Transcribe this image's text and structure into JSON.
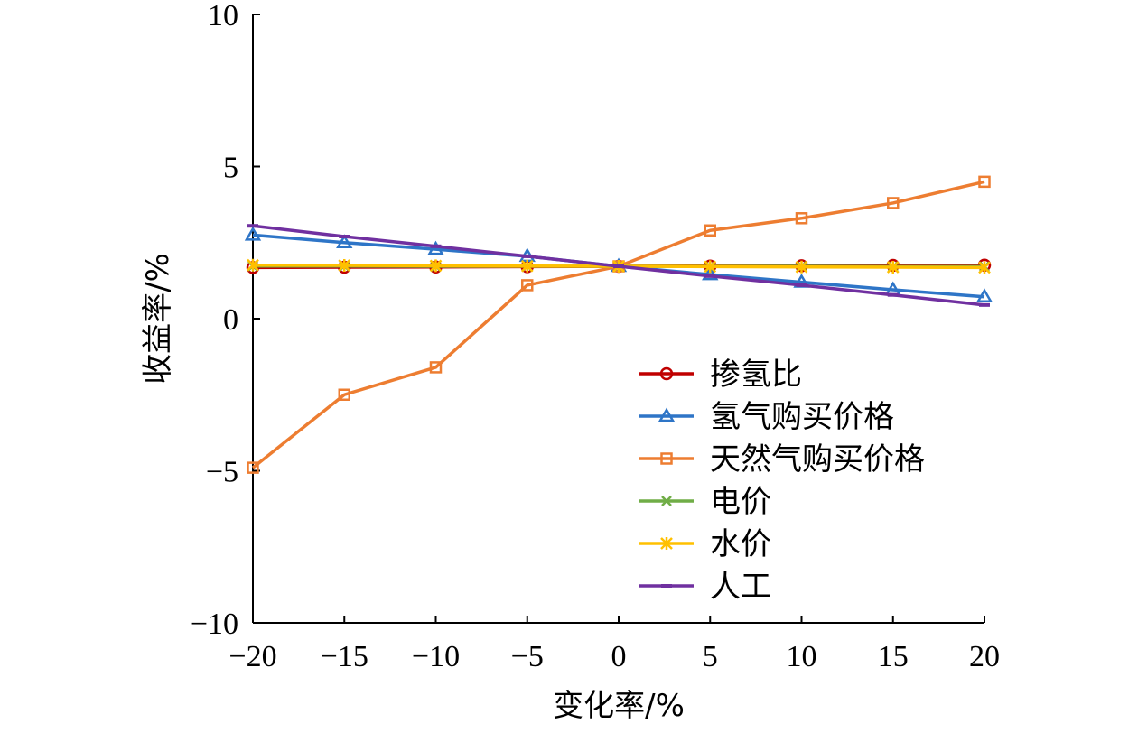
{
  "chart_data": {
    "type": "line",
    "xlabel": "变化率/%",
    "ylabel": "收益率/%",
    "xlim": [
      -20,
      20
    ],
    "ylim": [
      -10,
      10
    ],
    "xticks": [
      -20,
      -15,
      -10,
      -5,
      0,
      5,
      10,
      15,
      20
    ],
    "yticks": [
      -10,
      -5,
      0,
      5,
      10
    ],
    "xtick_labels": [
      "−20",
      "−15",
      "−10",
      "−5",
      "0",
      "5",
      "10",
      "15",
      "20"
    ],
    "ytick_labels": [
      "−10",
      "−5",
      "0",
      "5",
      "10"
    ],
    "grid": false,
    "legend_position": "lower-right",
    "x": [
      -20,
      -15,
      -10,
      -5,
      0,
      5,
      10,
      15,
      20
    ],
    "series": [
      {
        "name": "掺氢比",
        "color": "#C00000",
        "marker": "circle",
        "values": [
          1.68,
          1.69,
          1.7,
          1.71,
          1.72,
          1.73,
          1.74,
          1.75,
          1.76
        ]
      },
      {
        "name": "氢气购买价格",
        "color": "#2E75C7",
        "marker": "triangle",
        "values": [
          2.75,
          2.5,
          2.28,
          2.05,
          1.72,
          1.45,
          1.2,
          0.95,
          0.72
        ]
      },
      {
        "name": "天然气购买价格",
        "color": "#ED7D31",
        "marker": "square",
        "values": [
          -4.9,
          -2.5,
          -1.6,
          1.1,
          1.72,
          2.9,
          3.3,
          3.8,
          4.5
        ]
      },
      {
        "name": "电价",
        "color": "#70AD47",
        "marker": "x",
        "values": [
          1.73,
          1.73,
          1.72,
          1.72,
          1.72,
          1.72,
          1.72,
          1.71,
          1.71
        ]
      },
      {
        "name": "水价",
        "color": "#FFC000",
        "marker": "star",
        "values": [
          1.76,
          1.75,
          1.74,
          1.73,
          1.72,
          1.71,
          1.7,
          1.69,
          1.68
        ]
      },
      {
        "name": "人工",
        "color": "#7030A0",
        "marker": "bar",
        "values": [
          3.05,
          2.7,
          2.38,
          2.05,
          1.72,
          1.4,
          1.1,
          0.78,
          0.45
        ]
      }
    ]
  }
}
